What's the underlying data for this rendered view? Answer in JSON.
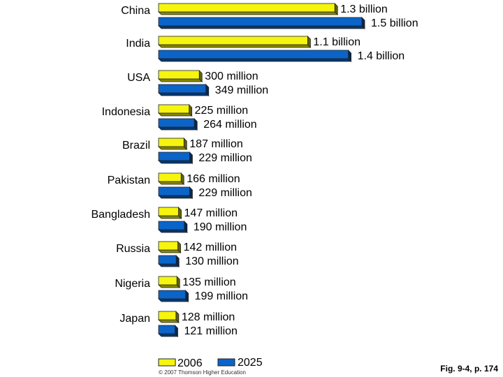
{
  "chart_data": {
    "type": "bar",
    "orientation": "horizontal",
    "categories": [
      "China",
      "India",
      "USA",
      "Indonesia",
      "Brazil",
      "Pakistan",
      "Bangladesh",
      "Russia",
      "Nigeria",
      "Japan"
    ],
    "series": [
      {
        "name": "2006",
        "color": "#f5f50f",
        "values": [
          1300,
          1100,
          300,
          225,
          187,
          166,
          147,
          142,
          135,
          128
        ],
        "value_labels": [
          "1.3 billion",
          "1.1 billion",
          "300 million",
          "225 million",
          "187 million",
          "166 million",
          "147 million",
          "142 million",
          "135 million",
          "128 million"
        ]
      },
      {
        "name": "2025",
        "color": "#0b64c8",
        "values": [
          1500,
          1400,
          349,
          264,
          229,
          229,
          190,
          130,
          199,
          121
        ],
        "value_labels": [
          "1.5 billion",
          "1.4 billion",
          "349 million",
          "264 million",
          "229 million",
          "229 million",
          "190 million",
          "130 million",
          "199 million",
          "121 million"
        ]
      }
    ],
    "legend_position": "bottom",
    "grid": false
  },
  "copyright": "© 2007 Thomson Higher Education",
  "caption": "Fig. 9-4, p. 174"
}
